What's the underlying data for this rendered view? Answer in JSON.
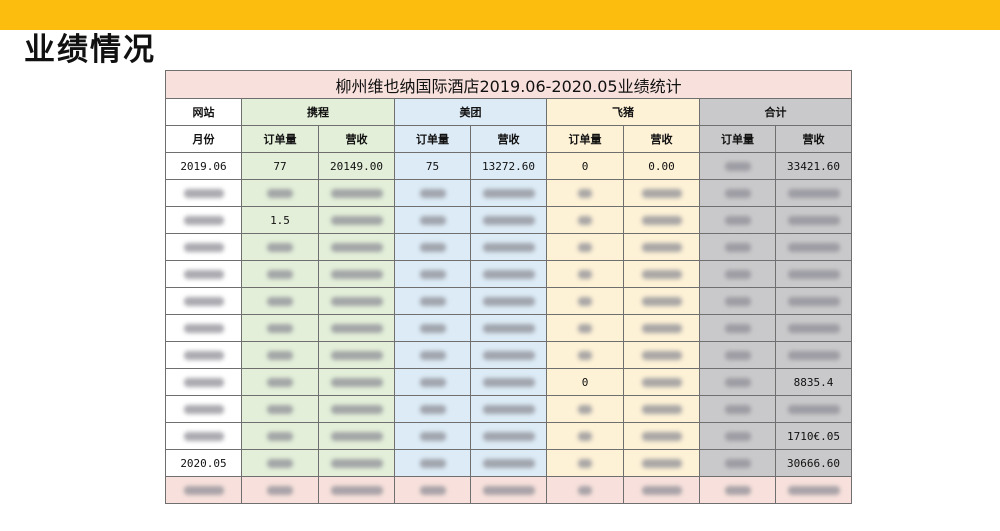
{
  "page": {
    "title": "业绩情况"
  },
  "table": {
    "title": "柳州维也纳国际酒店2019.06-2020.05业绩统计",
    "header1": {
      "site": "网站",
      "ctrip": "携程",
      "meituan": "美团",
      "fliggy": "飞猪",
      "total": "合计"
    },
    "header2": {
      "month": "月份",
      "orders": "订单量",
      "revenue": "营收"
    },
    "rows": [
      [
        "2019.06",
        "77",
        "20149.00",
        "75",
        "13272.60",
        "0",
        "0.00",
        "",
        "33421.60"
      ],
      [
        "",
        "",
        "",
        "",
        "",
        "",
        "",
        "",
        "",
        ""
      ],
      [
        "",
        "1.5",
        "",
        "",
        "",
        "",
        "",
        "",
        ""
      ],
      [
        "",
        "",
        "",
        "",
        "",
        "",
        "",
        "",
        ""
      ],
      [
        "",
        "",
        "",
        "",
        "",
        "",
        "",
        "",
        ""
      ],
      [
        "",
        "",
        "",
        "",
        "",
        "",
        "",
        "",
        ""
      ],
      [
        "",
        "",
        "",
        "",
        "",
        "",
        "",
        "",
        ""
      ],
      [
        "",
        "",
        "",
        "",
        "",
        "",
        "",
        "",
        ""
      ],
      [
        "",
        "",
        "",
        "",
        "",
        "0",
        "",
        "",
        "8835.4"
      ],
      [
        "",
        "",
        "",
        "",
        "",
        "",
        "",
        "",
        ""
      ],
      [
        "",
        "",
        "",
        "",
        "",
        "",
        "",
        "",
        "1710€.05"
      ],
      [
        "2020.05",
        "",
        "",
        "",
        "",
        "",
        "",
        "",
        "30666.60"
      ]
    ],
    "total_row": [
      "",
      "",
      "",
      "",
      "",
      "",
      "",
      "",
      ""
    ]
  }
}
